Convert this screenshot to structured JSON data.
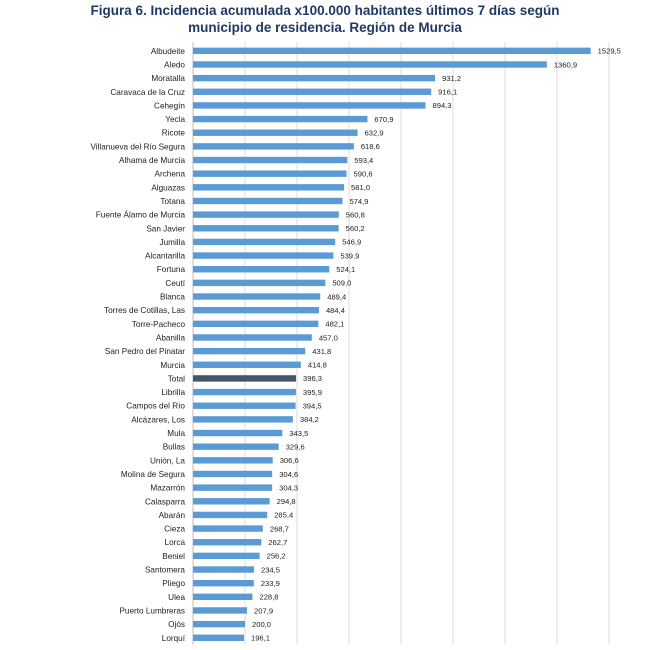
{
  "chart_data": {
    "type": "bar",
    "orientation": "horizontal",
    "title_line1": "Figura 6. Incidencia acumulada  x100.000 habitantes últimos 7 días según",
    "title_line2": "municipio de residencia. Región de Murcia",
    "xlim": [
      0,
      1600
    ],
    "grid": true,
    "bar_color": "#5b9bd5",
    "highlight_color": "#44546a",
    "highlight_category": "Total",
    "categories": [
      "Albudeite",
      "Aledo",
      "Moratalla",
      "Caravaca de la Cruz",
      "Cehegín",
      "Yecla",
      "Ricote",
      "Villanueva del Río Segura",
      "Alhama de Murcia",
      "Archena",
      "Alguazas",
      "Totana",
      "Fuente Álamo de Murcia",
      "San Javier",
      "Jumilla",
      "Alcantarilla",
      "Fortuna",
      "Ceutí",
      "Blanca",
      "Torres de Cotillas, Las",
      "Torre-Pacheco",
      "Abanilla",
      "San Pedro del Pinatar",
      "Murcia",
      "Total",
      "Librilla",
      "Campos del Río",
      "Alcázares, Los",
      "Mula",
      "Bullas",
      "Unión, La",
      "Molina de Segura",
      "Mazarrón",
      "Calasparra",
      "Abarán",
      "Cieza",
      "Lorca",
      "Beniel",
      "Santomera",
      "Pliego",
      "Ulea",
      "Puerto Lumbreras",
      "Ojós",
      "Lorquí"
    ],
    "values": [
      1529.5,
      1360.9,
      931.2,
      916.1,
      894.3,
      670.9,
      632.9,
      618.6,
      593.4,
      590.6,
      581.0,
      574.9,
      560.8,
      560.2,
      546.9,
      539.9,
      524.1,
      509.0,
      489.4,
      484.4,
      482.1,
      457.0,
      431.8,
      414.8,
      396.3,
      395.9,
      394.5,
      384.2,
      343.5,
      329.6,
      306.6,
      304.6,
      304.3,
      294.8,
      285.4,
      268.7,
      262.7,
      256.2,
      234.5,
      233.9,
      228.8,
      207.9,
      200.0,
      196.1
    ],
    "value_labels": [
      "1529,5",
      "1360,9",
      "931,2",
      "916,1",
      "894,3",
      "670,9",
      "632,9",
      "618,6",
      "593,4",
      "590,6",
      "581,0",
      "574,9",
      "560,8",
      "560,2",
      "546,9",
      "539,9",
      "524,1",
      "509,0",
      "489,4",
      "484,4",
      "482,1",
      "457,0",
      "431,8",
      "414,8",
      "396,3",
      "395,9",
      "394,5",
      "384,2",
      "343,5",
      "329,6",
      "306,6",
      "304,6",
      "304,3",
      "294,8",
      "285,4",
      "268,7",
      "262,7",
      "256,2",
      "234,5",
      "233,9",
      "228,8",
      "207,9",
      "200,0",
      "196,1"
    ]
  }
}
